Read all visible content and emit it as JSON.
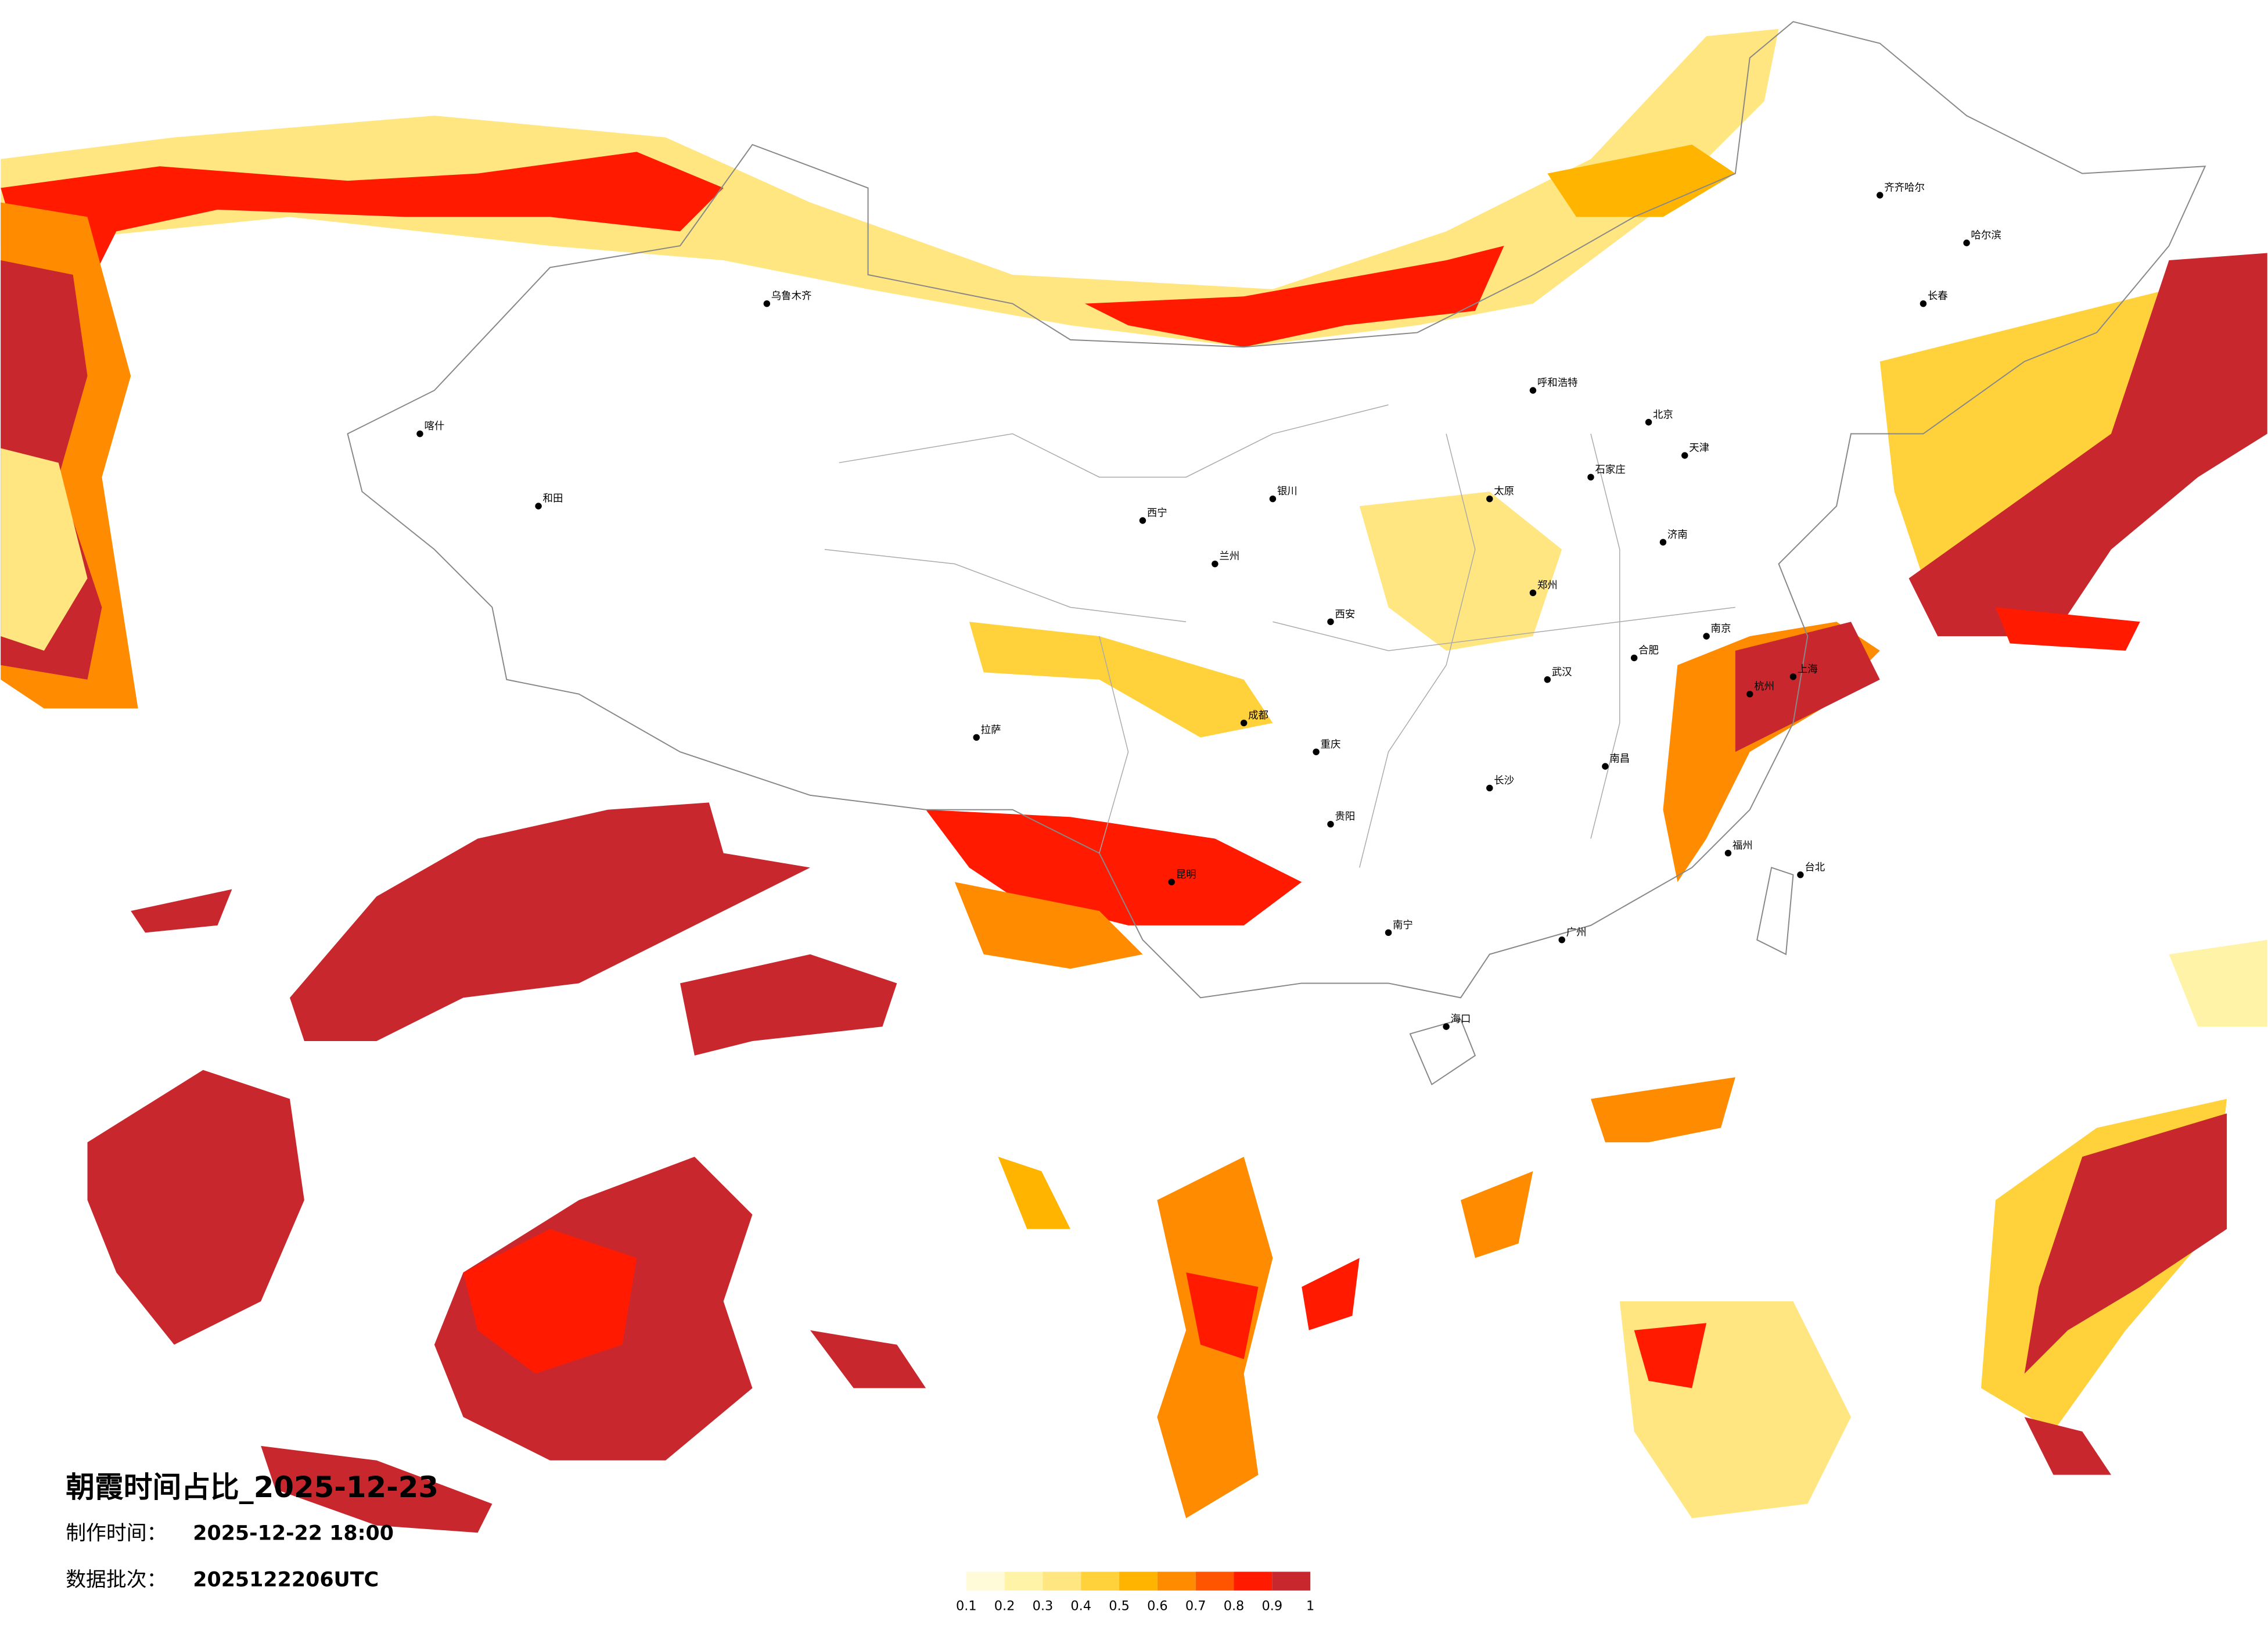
{
  "header": {
    "title": "朝霞时间占比_2025-12-23",
    "made_label": "制作时间：",
    "made_time": "2025-12-22 18:00",
    "batch_label": "数据批次：",
    "batch": "2025122206UTC"
  },
  "legend": {
    "colors": [
      "#fffbd8",
      "#fff3a8",
      "#ffe680",
      "#ffd23c",
      "#ffb400",
      "#ff8c00",
      "#ff5500",
      "#ff1a00",
      "#c8282d"
    ],
    "ticks": [
      0.1,
      0.2,
      0.3,
      0.4,
      0.5,
      0.6,
      0.7,
      0.8,
      0.9,
      1
    ]
  },
  "cities": [
    "哈尔滨",
    "长春",
    "齐齐哈尔",
    "呼和浩特",
    "北京",
    "天津",
    "石家庄",
    "太原",
    "济南",
    "郑州",
    "西安",
    "兰州",
    "西宁",
    "银川",
    "乌鲁木齐",
    "喀什",
    "和田",
    "拉萨",
    "成都",
    "重庆",
    "贵阳",
    "昆明",
    "南宁",
    "广州",
    "长沙",
    "武汉",
    "南昌",
    "福州",
    "杭州",
    "上海",
    "南京",
    "合肥",
    "海口",
    "台北"
  ]
}
